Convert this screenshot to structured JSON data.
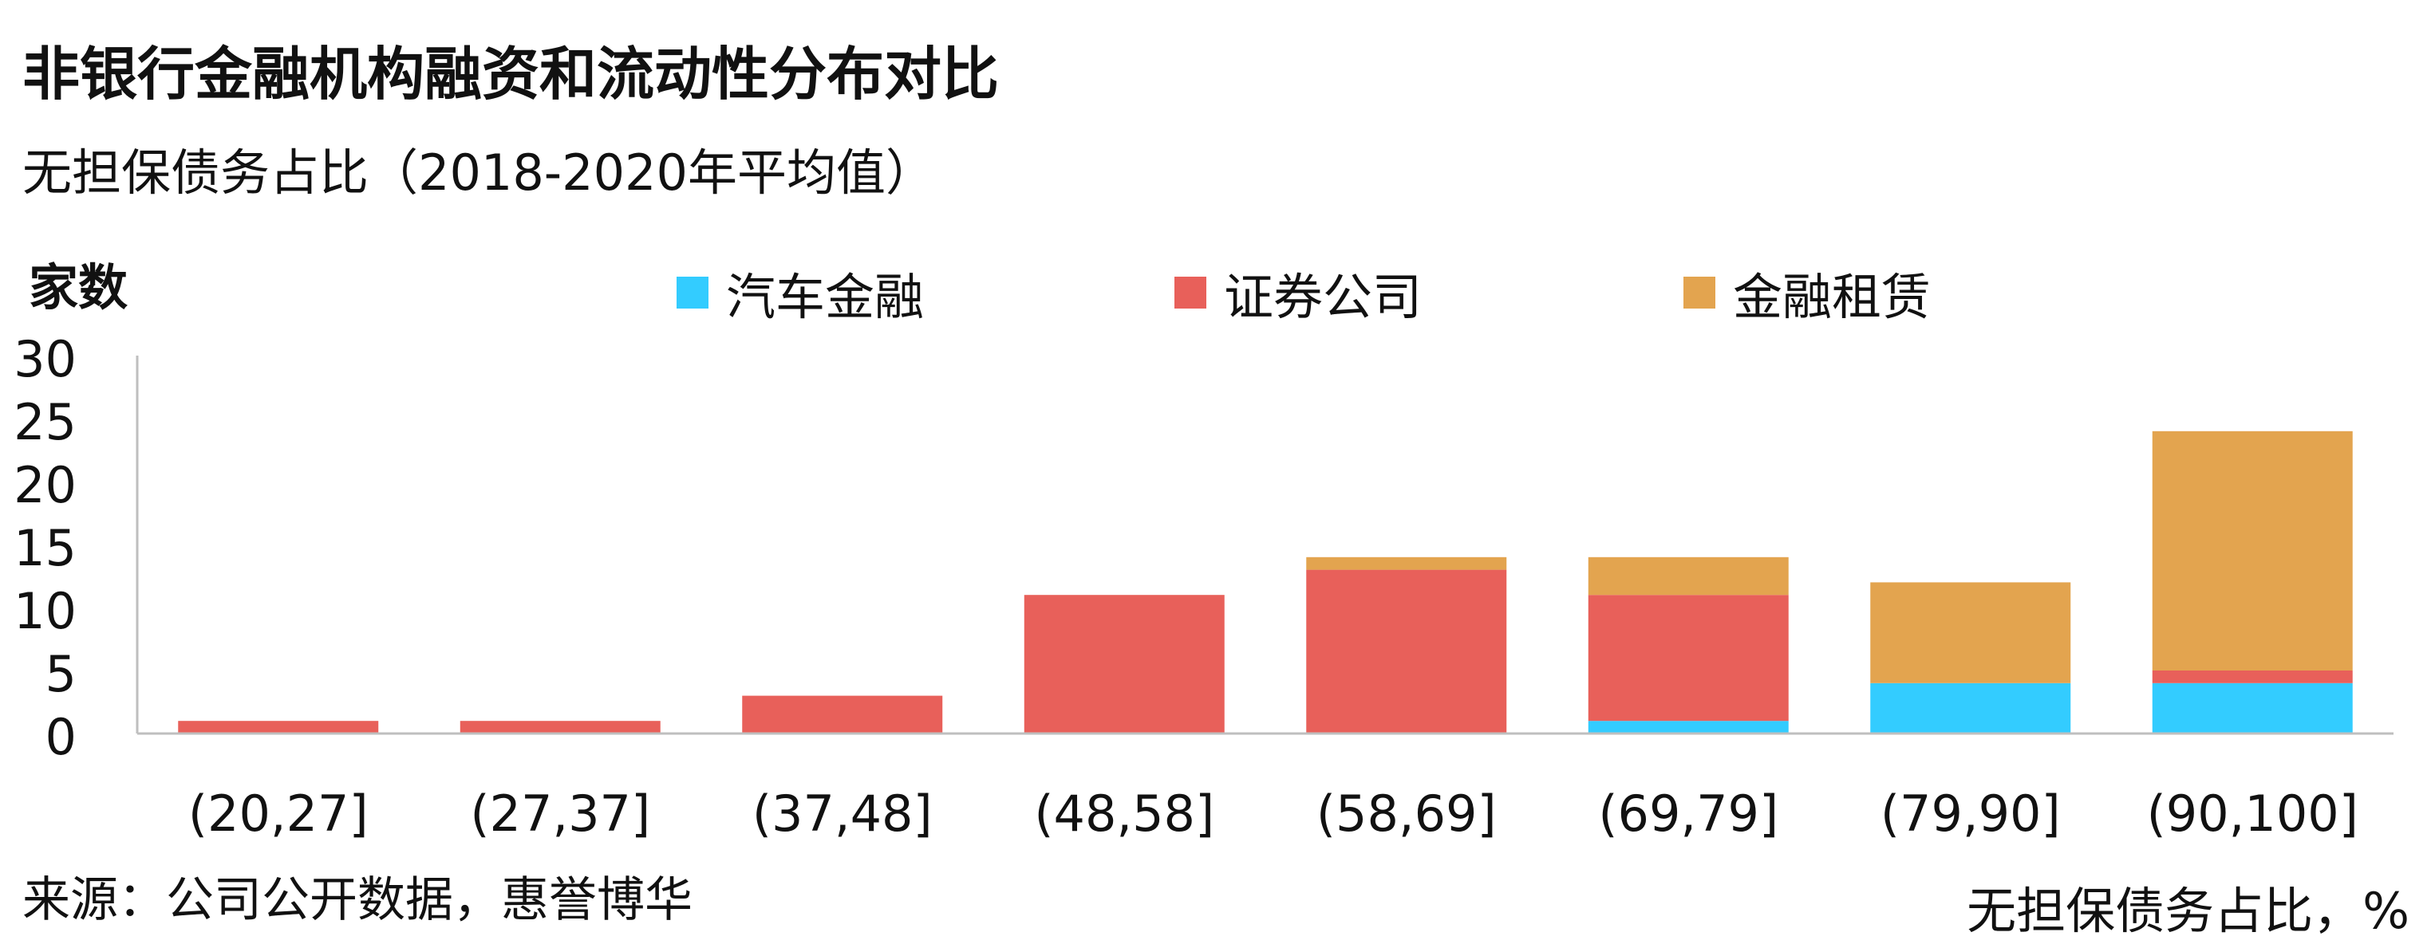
{
  "title": "非银行金融机构融资和流动性分布对比",
  "subtitle": "无担保债务占比（2018-2020年平均值）",
  "source": "来源：公司公开数据，惠誉博华",
  "chart_data": {
    "type": "bar",
    "stacked": true,
    "ylabel": "家数",
    "xlabel": "无担保债务占比，%",
    "ylim": [
      0,
      30
    ],
    "yticks": [
      "0",
      "5",
      "10",
      "15",
      "20",
      "25",
      "30"
    ],
    "grid": false,
    "legend_position": "top",
    "categories": [
      "(20,27]",
      "(27,37]",
      "(37,48]",
      "(48,58]",
      "(58,69]",
      "(69,79]",
      "(79,90]",
      "(90,100]"
    ],
    "series": [
      {
        "name": "汽车金融",
        "color": "#33CCFF",
        "values": [
          0,
          0,
          0,
          0,
          0,
          1,
          4,
          4
        ]
      },
      {
        "name": "证券公司",
        "color": "#E8605A",
        "values": [
          1,
          1,
          3,
          11,
          13,
          10,
          0,
          1
        ]
      },
      {
        "name": "金融租赁",
        "color": "#E3A44F",
        "values": [
          0,
          0,
          0,
          0,
          1,
          3,
          8,
          19
        ]
      }
    ]
  }
}
